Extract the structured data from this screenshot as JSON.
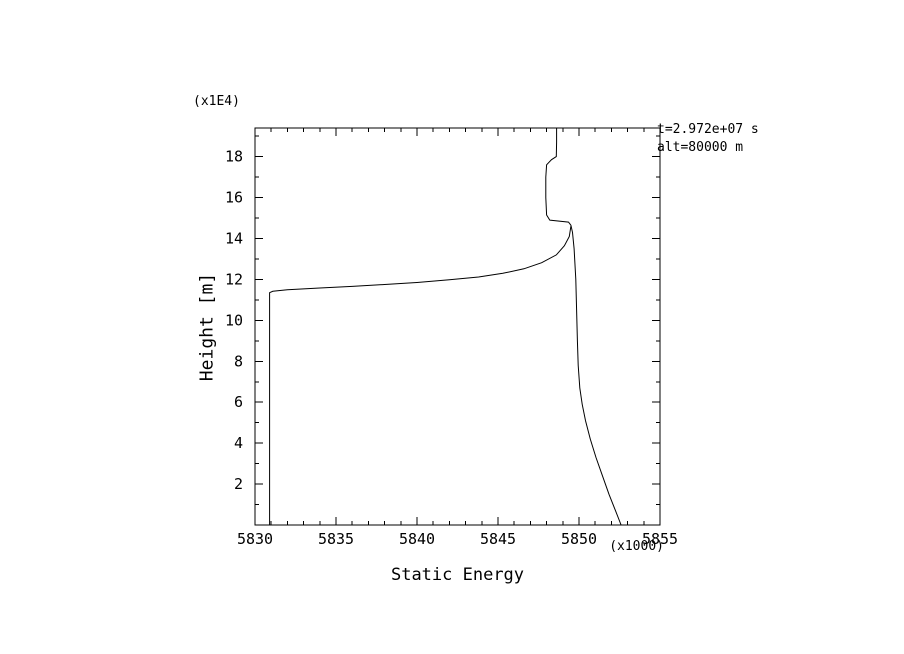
{
  "chart_data": {
    "type": "line",
    "title": "Static Energy",
    "xlabel": "Static Energy",
    "ylabel": "Height [m]",
    "x_scale_note": "(x1000)",
    "y_scale_note": "(x1E4)",
    "annotations": [
      "t=2.972e+07 s",
      "alt=80000 m"
    ],
    "xlim": [
      5830,
      5855
    ],
    "ylim": [
      0,
      19.4
    ],
    "x_major_ticks": [
      5830,
      5835,
      5840,
      5845,
      5850,
      5855
    ],
    "x_minor_step": 1,
    "y_major_ticks": [
      2,
      4,
      6,
      8,
      10,
      12,
      14,
      16,
      18
    ],
    "y_minor_step": 1,
    "grid": false,
    "legend": false,
    "line_color": "#000000",
    "background_color": "#ffffff",
    "series": [
      {
        "name": "lower-profile",
        "points": [
          [
            5830.9,
            0.0
          ],
          [
            5830.9,
            11.35
          ],
          [
            5831.1,
            11.42
          ],
          [
            5832.0,
            11.5
          ],
          [
            5834.0,
            11.58
          ],
          [
            5836.0,
            11.66
          ],
          [
            5838.0,
            11.75
          ],
          [
            5840.0,
            11.85
          ],
          [
            5842.0,
            11.98
          ],
          [
            5843.8,
            12.12
          ],
          [
            5845.3,
            12.3
          ],
          [
            5846.6,
            12.52
          ],
          [
            5847.7,
            12.82
          ],
          [
            5848.6,
            13.2
          ],
          [
            5849.1,
            13.65
          ],
          [
            5849.4,
            14.1
          ],
          [
            5849.5,
            14.6
          ]
        ]
      },
      {
        "name": "upper-profile",
        "points": [
          [
            5852.6,
            0.0
          ],
          [
            5852.25,
            0.7
          ],
          [
            5851.85,
            1.5
          ],
          [
            5851.45,
            2.4
          ],
          [
            5851.05,
            3.3
          ],
          [
            5850.7,
            4.2
          ],
          [
            5850.4,
            5.1
          ],
          [
            5850.2,
            5.9
          ],
          [
            5850.05,
            6.7
          ],
          [
            5849.95,
            7.8
          ],
          [
            5849.9,
            9.0
          ],
          [
            5849.85,
            10.5
          ],
          [
            5849.8,
            12.0
          ],
          [
            5849.7,
            13.5
          ],
          [
            5849.6,
            14.3
          ],
          [
            5849.5,
            14.65
          ],
          [
            5849.35,
            14.8
          ],
          [
            5848.2,
            14.9
          ],
          [
            5848.0,
            15.15
          ],
          [
            5847.95,
            16.0
          ],
          [
            5847.95,
            17.0
          ],
          [
            5848.0,
            17.6
          ],
          [
            5848.3,
            17.85
          ],
          [
            5848.6,
            18.0
          ],
          [
            5848.62,
            18.7
          ],
          [
            5848.62,
            19.4
          ]
        ]
      }
    ]
  }
}
